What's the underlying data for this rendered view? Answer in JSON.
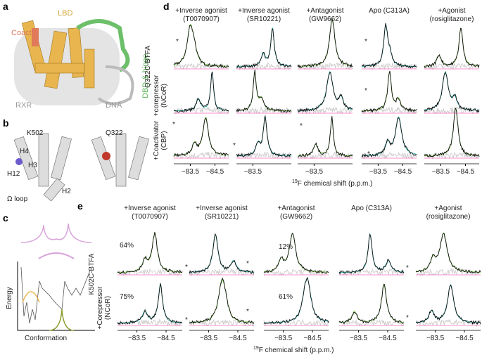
{
  "panels": {
    "a": {
      "label": "a",
      "lbd": "LBD",
      "coact": "Coact.",
      "rxr": "RXR",
      "dna": "DNA",
      "dbd": "DBD & hinge"
    },
    "b": {
      "label": "b",
      "left": "K502",
      "right": "Q322",
      "h4": "H4",
      "h3": "H3",
      "h12": "H12",
      "h2": "H2",
      "loop": "Ω loop"
    },
    "c": {
      "label": "c",
      "y_axis": "Energy",
      "x_axis": "Conformation"
    },
    "d": {
      "label": "d",
      "columns": [
        [
          "+Inverse agonist",
          "(T0070907)"
        ],
        [
          "+Inverse agonist",
          "(SR10221)"
        ],
        [
          "+Antagonist",
          "(GW9662)"
        ],
        [
          "Apo (C313A)"
        ],
        [
          "+Agonist",
          "(rosiglitazone)"
        ]
      ],
      "construct": "Q322C-BTFA",
      "rows": [
        [
          "+corepressor",
          "(NCoR)"
        ],
        [
          "+Coactivator",
          "(CBP)"
        ]
      ],
      "ticks": [
        [
          "−83.5",
          "−84.5"
        ],
        [
          "−83.5"
        ],
        [
          "−83.5"
        ],
        [
          "−83.5",
          "−84.5"
        ],
        [
          "−83.5",
          "−84.5"
        ]
      ],
      "axis_sup": "19",
      "axis_label": "F chemical shift (p.p.m.)",
      "asterisk": "*"
    },
    "e": {
      "label": "e",
      "columns": [
        [
          "+Inverse agonist",
          "(T0070907)"
        ],
        [
          "+Inverse agonist",
          "(SR10221)"
        ],
        [
          "+Antagonist",
          "(GW9662)"
        ],
        [
          "Apo (C313A)"
        ],
        [
          "+Agonist",
          "(rosiglitazone)"
        ]
      ],
      "construct": "K502C-BTFA",
      "rows": [
        [
          "+Corepressor",
          "(NCoR)"
        ]
      ],
      "percents": [
        "64%",
        "12%",
        "75%",
        "61%"
      ],
      "ticks": [
        [
          "−83.5",
          "−84.5"
        ],
        [
          "−83.5",
          "−84.5"
        ],
        [
          "−83.5",
          "−84.5"
        ],
        [
          "−83.5",
          "−84.5"
        ],
        [
          "−83.5",
          "−84.5"
        ]
      ],
      "axis_sup": "19",
      "axis_label": "F chemical shift (p.p.m.)",
      "asterisk": "*"
    }
  }
}
